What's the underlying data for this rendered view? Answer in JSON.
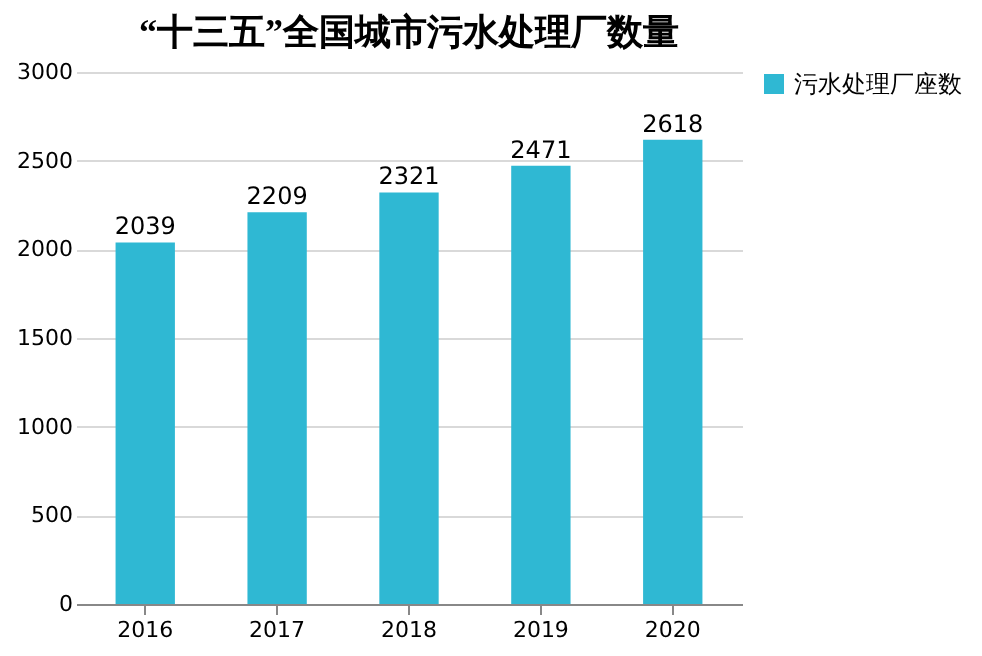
{
  "chart_data": {
    "type": "bar",
    "title": "“十三五”全国城市污水处理厂数量",
    "categories": [
      "2016",
      "2017",
      "2018",
      "2019",
      "2020"
    ],
    "series": [
      {
        "name": "污水处理厂座数",
        "color": "#2fb8d3",
        "values": [
          2039,
          2209,
          2321,
          2471,
          2618
        ]
      }
    ],
    "ylim": [
      0,
      3000
    ],
    "yticks": [
      0,
      500,
      1000,
      1500,
      2000,
      2500,
      3000
    ],
    "grid": "y",
    "legend": "right",
    "data_labels": true
  }
}
